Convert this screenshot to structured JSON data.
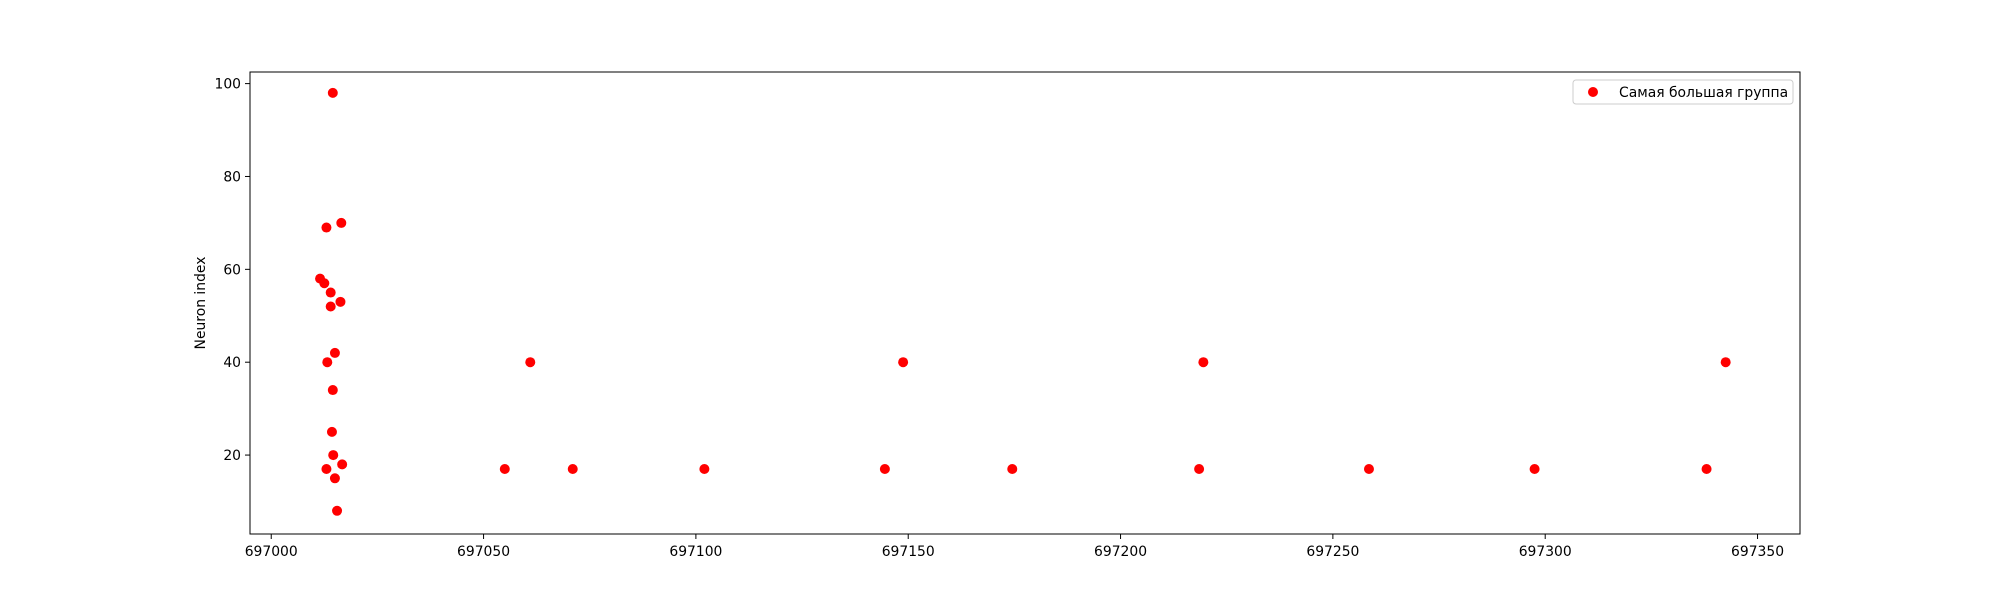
{
  "chart_data": {
    "type": "scatter",
    "title": "",
    "xlabel": "",
    "ylabel": "Neuron index",
    "xlim": [
      696995,
      697360
    ],
    "ylim": [
      3,
      102.5
    ],
    "x_ticks": [
      697000,
      697050,
      697100,
      697150,
      697200,
      697250,
      697300,
      697350
    ],
    "y_ticks": [
      20,
      40,
      60,
      80,
      100
    ],
    "grid": false,
    "legend_position": "upper right",
    "series": [
      {
        "name": "Самая большая группа",
        "color": "#ff0000",
        "marker": "circle",
        "points": [
          {
            "x": 697014.5,
            "y": 98
          },
          {
            "x": 697016.5,
            "y": 70
          },
          {
            "x": 697013.0,
            "y": 69
          },
          {
            "x": 697011.5,
            "y": 58
          },
          {
            "x": 697012.5,
            "y": 57
          },
          {
            "x": 697014.0,
            "y": 55
          },
          {
            "x": 697016.3,
            "y": 53
          },
          {
            "x": 697014.0,
            "y": 52
          },
          {
            "x": 697015.0,
            "y": 42
          },
          {
            "x": 697013.2,
            "y": 40
          },
          {
            "x": 697014.5,
            "y": 34
          },
          {
            "x": 697014.3,
            "y": 25
          },
          {
            "x": 697014.6,
            "y": 20
          },
          {
            "x": 697016.7,
            "y": 18
          },
          {
            "x": 697013.0,
            "y": 17
          },
          {
            "x": 697015.0,
            "y": 15
          },
          {
            "x": 697015.5,
            "y": 8
          },
          {
            "x": 697055.0,
            "y": 17
          },
          {
            "x": 697061.0,
            "y": 40
          },
          {
            "x": 697071.0,
            "y": 17
          },
          {
            "x": 697102.0,
            "y": 17
          },
          {
            "x": 697144.5,
            "y": 17
          },
          {
            "x": 697148.8,
            "y": 40
          },
          {
            "x": 697174.5,
            "y": 17
          },
          {
            "x": 697218.5,
            "y": 17
          },
          {
            "x": 697219.5,
            "y": 40
          },
          {
            "x": 697258.5,
            "y": 17
          },
          {
            "x": 697297.5,
            "y": 17
          },
          {
            "x": 697338.0,
            "y": 17
          },
          {
            "x": 697342.5,
            "y": 40
          }
        ]
      }
    ]
  }
}
